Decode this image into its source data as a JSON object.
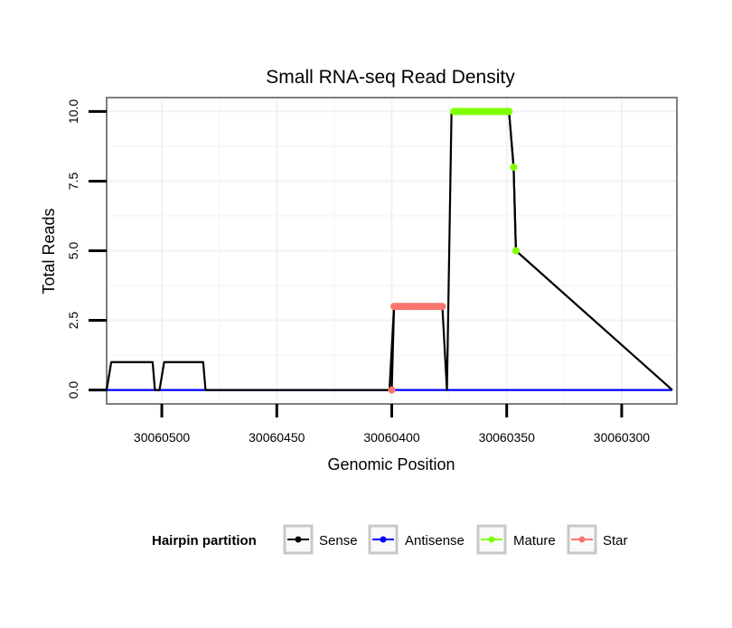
{
  "chart_data": {
    "type": "line",
    "title": "Small RNA-seq Read Density",
    "xlabel": "Genomic Position",
    "ylabel": "Total Reads",
    "x_reversed": true,
    "xlim": [
      30060276,
      30060524
    ],
    "ylim": [
      -0.5,
      10.5
    ],
    "x_ticks": [
      30060500,
      30060450,
      30060400,
      30060350,
      30060300
    ],
    "x_tick_labels": [
      "30060500",
      "30060450",
      "30060400",
      "30060350",
      "30060300"
    ],
    "y_ticks": [
      0,
      2.5,
      5,
      7.5,
      10
    ],
    "y_tick_labels": [
      "0.0",
      "2.5",
      "5.0",
      "7.5",
      "10.0"
    ],
    "grid": true,
    "legend": {
      "title": "Hairpin partition",
      "position": "bottom",
      "entries": [
        "Sense",
        "Antisense",
        "Mature",
        "Star"
      ]
    },
    "series": [
      {
        "name": "Sense",
        "color": "#000000",
        "points": false,
        "x": [
          30060528,
          30060524,
          30060522,
          30060504,
          30060503,
          30060501,
          30060499,
          30060482,
          30060481,
          30060401,
          30060399,
          30060378,
          30060376,
          30060374,
          30060349,
          30060347,
          30060346,
          30060278
        ],
        "y": [
          0,
          0,
          1,
          1,
          0,
          0,
          1,
          1,
          0,
          0,
          3,
          3,
          0,
          10,
          10,
          8,
          5,
          0
        ]
      },
      {
        "name": "Antisense",
        "color": "#0000ff",
        "points": false,
        "x": [
          30060528,
          30060278
        ],
        "y": [
          0,
          0
        ]
      },
      {
        "name": "Mature",
        "color": "#7fff00",
        "points": true,
        "x": [
          30060373,
          30060372,
          30060371,
          30060370,
          30060369,
          30060368,
          30060367,
          30060366,
          30060365,
          30060364,
          30060363,
          30060362,
          30060361,
          30060360,
          30060359,
          30060358,
          30060357,
          30060356,
          30060355,
          30060354,
          30060353,
          30060352,
          30060351,
          30060350,
          30060349,
          30060347,
          30060346
        ],
        "y": [
          10,
          10,
          10,
          10,
          10,
          10,
          10,
          10,
          10,
          10,
          10,
          10,
          10,
          10,
          10,
          10,
          10,
          10,
          10,
          10,
          10,
          10,
          10,
          10,
          10,
          8,
          5
        ]
      },
      {
        "name": "Star",
        "color": "#f8766d",
        "points": true,
        "x": [
          30060400,
          30060399,
          30060398,
          30060397,
          30060396,
          30060395,
          30060394,
          30060393,
          30060392,
          30060391,
          30060390,
          30060389,
          30060388,
          30060387,
          30060386,
          30060385,
          30060384,
          30060383,
          30060382,
          30060381,
          30060380,
          30060379,
          30060378
        ],
        "y": [
          0,
          3,
          3,
          3,
          3,
          3,
          3,
          3,
          3,
          3,
          3,
          3,
          3,
          3,
          3,
          3,
          3,
          3,
          3,
          3,
          3,
          3,
          3
        ]
      }
    ]
  }
}
